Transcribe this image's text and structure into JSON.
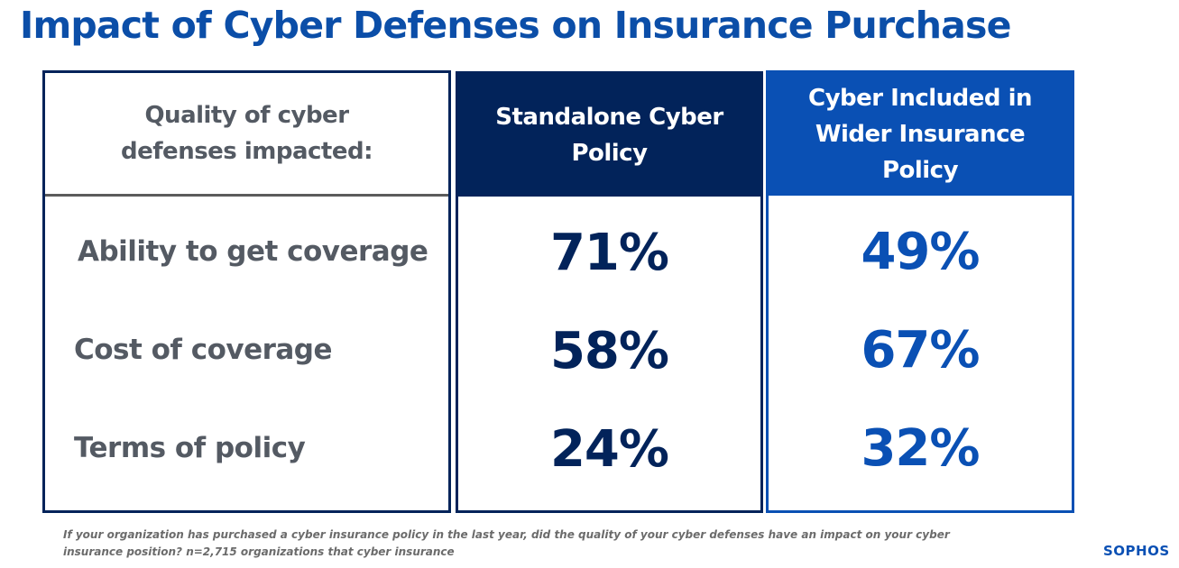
{
  "title": "Impact of Cyber Defenses on Insurance Purchase",
  "chart_data": {
    "type": "table",
    "title": "Impact of Cyber Defenses on Insurance Purchase",
    "row_header": "Quality of cyber defenses impacted:",
    "columns": [
      "Standalone Cyber Policy",
      "Cyber Included in Wider Insurance Policy"
    ],
    "rows": [
      "Ability to get coverage",
      "Cost of coverage",
      "Terms of policy"
    ],
    "values": [
      [
        "71%",
        "49%"
      ],
      [
        "58%",
        "67%"
      ],
      [
        "24%",
        "32%"
      ]
    ],
    "colors": {
      "title": "#0b4ea8",
      "standalone": "#02235a",
      "wider": "#0a50b4",
      "label": "#545a63"
    }
  },
  "footnote": "If your organization has purchased a cyber insurance policy in the last year, did the quality of your cyber defenses have an impact on your cyber insurance position? n=2,715 organizations that cyber insurance",
  "logo": "SOPHOS"
}
